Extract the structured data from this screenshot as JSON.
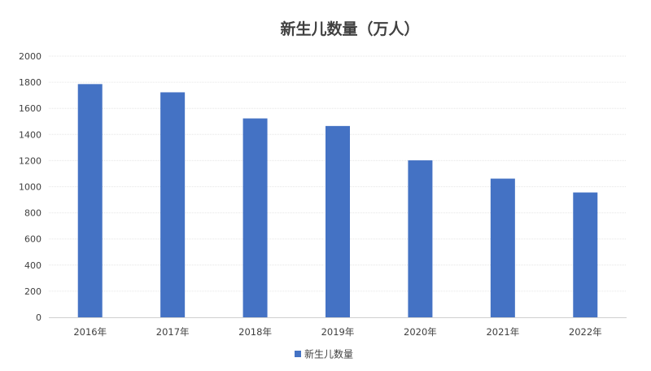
{
  "chart_data": {
    "type": "bar",
    "title": "新生儿数量（万人）",
    "categories": [
      "2016年",
      "2017年",
      "2018年",
      "2019年",
      "2020年",
      "2021年",
      "2022年"
    ],
    "series": [
      {
        "name": "新生儿数量",
        "values": [
          1786,
          1723,
          1523,
          1465,
          1202,
          1062,
          956
        ]
      }
    ],
    "ylim": [
      0,
      2000
    ],
    "yticks": [
      0,
      200,
      400,
      600,
      800,
      1000,
      1200,
      1400,
      1600,
      1800,
      2000
    ],
    "grid": true,
    "legend": "bottom",
    "colors": {
      "bar": "#4472C4"
    }
  }
}
